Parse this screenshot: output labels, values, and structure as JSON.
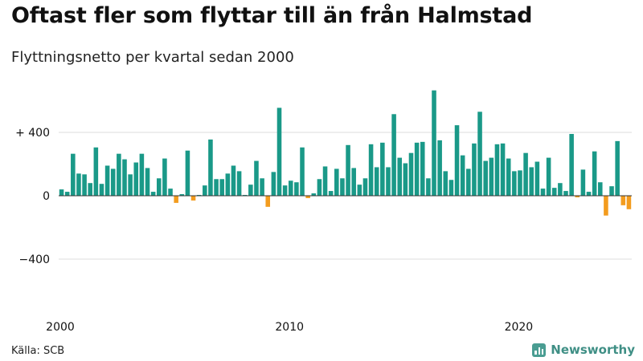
{
  "header": {
    "title": "Oftast fler som flyttar till än från Halmstad",
    "subtitle": "Flyttningsnetto per kvartal sedan 2000"
  },
  "footer": {
    "source": "Källa: SCB",
    "brand": "Newsworthy"
  },
  "colors": {
    "positive": "#1a9988",
    "negative": "#f39c1e",
    "grid": "#dddddd",
    "baseline": "#333333"
  },
  "chart_data": {
    "type": "bar",
    "x_start": "2000-Q1",
    "x_ticks": [
      "2000",
      "2010",
      "2020"
    ],
    "y_ticks": [
      {
        "value": 400,
        "label": "+ 400"
      },
      {
        "value": 0,
        "label": "0"
      },
      {
        "value": -400,
        "label": "−400"
      }
    ],
    "ylim": [
      -600,
      700
    ],
    "grid": true,
    "values": [
      40,
      25,
      265,
      140,
      135,
      80,
      305,
      75,
      190,
      170,
      265,
      230,
      135,
      210,
      265,
      175,
      25,
      110,
      235,
      45,
      -45,
      10,
      285,
      -30,
      5,
      65,
      355,
      105,
      105,
      140,
      190,
      155,
      5,
      70,
      220,
      110,
      -70,
      150,
      555,
      65,
      95,
      85,
      305,
      -15,
      15,
      105,
      185,
      30,
      170,
      110,
      320,
      175,
      70,
      110,
      325,
      180,
      335,
      180,
      515,
      240,
      205,
      270,
      335,
      340,
      110,
      665,
      350,
      155,
      100,
      445,
      255,
      170,
      330,
      530,
      220,
      240,
      325,
      330,
      235,
      155,
      160,
      270,
      180,
      215,
      45,
      240,
      50,
      80,
      30,
      390,
      -10,
      165,
      25,
      280,
      85,
      -125,
      60,
      345,
      -60,
      -85
    ]
  }
}
